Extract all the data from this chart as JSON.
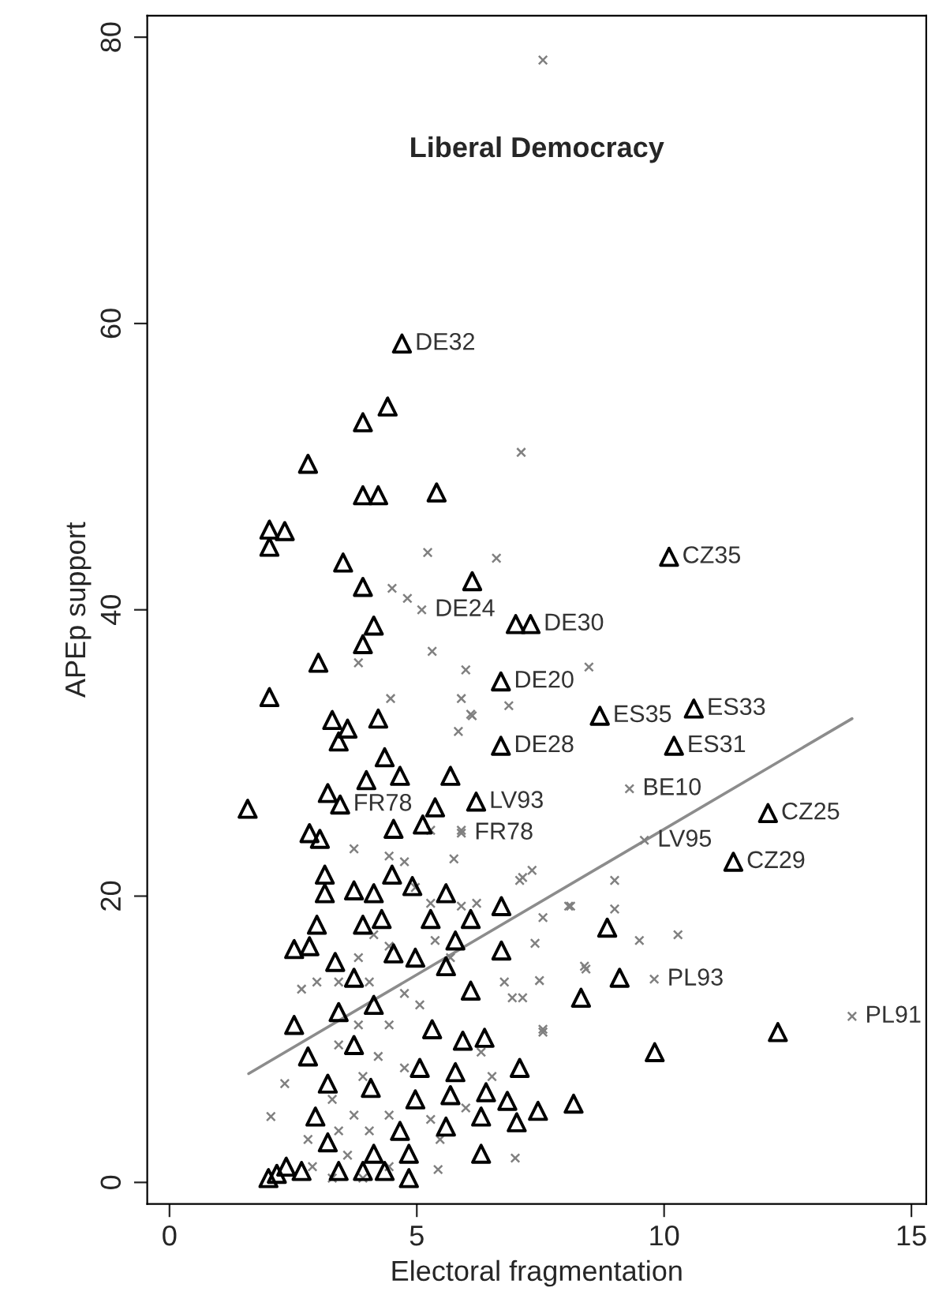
{
  "chart_data": {
    "type": "scatter",
    "title": "Liberal Democracy",
    "xlabel": "Electoral fragmentation",
    "ylabel": "APEp support",
    "xlim": [
      -0.45,
      15.3
    ],
    "ylim": [
      -1.5,
      81.5
    ],
    "xticks": [
      0,
      5,
      10,
      15
    ],
    "yticks": [
      0,
      20,
      40,
      60,
      80
    ],
    "grid": false,
    "legend": false,
    "series": [
      {
        "marker": "triangle",
        "color": "#000000",
        "x": [
          4.7,
          10.1,
          7.3,
          7.0,
          6.7,
          8.7,
          10.6,
          6.7,
          10.2,
          6.2,
          3.45,
          12.1,
          11.4,
          4.41,
          3.91,
          2.8,
          3.91,
          4.22,
          5.4,
          2.02,
          2.33,
          2.02,
          3.51,
          6.12,
          3.91,
          4.13,
          3.91,
          3.01,
          2.02,
          3.29,
          3.6,
          4.22,
          3.42,
          1.58,
          4.35,
          4.66,
          5.68,
          3.98,
          3.2,
          5.37,
          2.83,
          4.53,
          5.12,
          3.04,
          3.14,
          3.14,
          4.5,
          3.73,
          4.13,
          4.91,
          5.59,
          6.71,
          2.98,
          3.91,
          4.29,
          5.28,
          6.09,
          5.78,
          2.52,
          2.83,
          4.53,
          4.97,
          6.71,
          3.35,
          5.59,
          3.73,
          6.09,
          8.32,
          2.52,
          3.42,
          4.13,
          5.31,
          5.93,
          6.37,
          2.8,
          3.73,
          5.06,
          5.78,
          7.08,
          3.2,
          4.07,
          4.97,
          5.68,
          6.4,
          6.83,
          7.45,
          8.17,
          6.3,
          5.59,
          7.02,
          2.95,
          4.66,
          3.2,
          4.13,
          4.84,
          6.3,
          4.84,
          2.36,
          2.17,
          2.67,
          3.42,
          3.91,
          4.35,
          2.0,
          8.85,
          9.1,
          12.3,
          9.81
        ],
        "values": [
          58.6,
          43.7,
          39.0,
          39.0,
          35.0,
          32.6,
          33.1,
          30.5,
          30.5,
          26.6,
          26.4,
          25.8,
          22.4,
          54.2,
          53.1,
          50.2,
          48.0,
          48.0,
          48.2,
          45.6,
          45.5,
          44.4,
          43.3,
          42.0,
          41.6,
          38.9,
          37.6,
          36.3,
          33.9,
          32.3,
          31.7,
          32.4,
          30.8,
          26.1,
          29.7,
          28.4,
          28.4,
          28.1,
          27.2,
          26.2,
          24.4,
          24.7,
          25.0,
          24.0,
          21.5,
          20.2,
          21.5,
          20.4,
          20.2,
          20.7,
          20.2,
          19.3,
          18.0,
          18.0,
          18.4,
          18.4,
          18.4,
          16.9,
          16.3,
          16.5,
          16.0,
          15.7,
          16.2,
          15.4,
          15.1,
          14.3,
          13.4,
          12.9,
          11.0,
          11.9,
          12.4,
          10.7,
          9.9,
          10.1,
          8.8,
          9.6,
          8.0,
          7.7,
          8.0,
          6.9,
          6.6,
          5.8,
          6.1,
          6.3,
          5.7,
          5.0,
          5.5,
          4.6,
          3.9,
          4.2,
          4.6,
          3.6,
          2.8,
          2.0,
          2.0,
          2.0,
          0.3,
          1.1,
          0.6,
          0.8,
          0.8,
          0.8,
          0.8,
          0.3,
          17.8,
          14.3,
          10.5,
          9.1
        ]
      },
      {
        "marker": "cross",
        "color": "#808080",
        "x": [
          5.1,
          9.3,
          5.9,
          9.6,
          9.8,
          13.8,
          7.55,
          7.11,
          6.61,
          5.22,
          5.31,
          4.5,
          4.81,
          5.99,
          4.47,
          5.9,
          6.12,
          5.84,
          3.82,
          8.48,
          6.86,
          6.09,
          9.0,
          9.0,
          9.5,
          10.28,
          8.42,
          7.48,
          8.07,
          7.39,
          7.08,
          7.55,
          6.93,
          3.73,
          5.28,
          5.75,
          5.9,
          7.14,
          7.33,
          7.55,
          8.11,
          6.77,
          7.14,
          7.55,
          8.39,
          6.99,
          5.43,
          2.33,
          2.05,
          2.98,
          2.67,
          4.44,
          4.75,
          4.97,
          5.28,
          5.9,
          6.21,
          5.37,
          5.68,
          4.44,
          4.13,
          3.82,
          3.42,
          4.04,
          4.75,
          5.06,
          4.44,
          3.82,
          3.42,
          4.22,
          4.75,
          3.91,
          3.29,
          3.73,
          4.44,
          5.28,
          4.04,
          3.42,
          2.8,
          3.6,
          2.89,
          4.44,
          3.29,
          3.91,
          5.47,
          5.99,
          6.52,
          6.3
        ],
        "values": [
          40.0,
          27.5,
          24.4,
          23.9,
          14.2,
          11.6,
          78.4,
          51.0,
          43.6,
          44.0,
          37.1,
          41.5,
          40.8,
          35.8,
          33.8,
          33.8,
          32.6,
          31.5,
          36.3,
          36.0,
          33.3,
          32.7,
          21.1,
          19.1,
          16.9,
          17.3,
          14.9,
          14.1,
          19.3,
          16.7,
          21.1,
          10.5,
          12.9,
          23.3,
          24.6,
          22.6,
          24.6,
          21.3,
          21.8,
          18.5,
          19.3,
          14.0,
          12.9,
          10.7,
          15.1,
          1.7,
          0.9,
          6.9,
          4.6,
          14.0,
          13.5,
          22.8,
          22.4,
          20.6,
          19.5,
          19.3,
          19.5,
          16.9,
          15.7,
          16.5,
          17.3,
          15.7,
          14.0,
          14.0,
          13.2,
          12.4,
          11.0,
          11.0,
          9.6,
          8.8,
          8.0,
          7.4,
          5.8,
          4.7,
          4.7,
          4.4,
          3.6,
          3.6,
          3.0,
          1.9,
          1.1,
          1.1,
          0.3,
          0.3,
          3.0,
          5.2,
          7.4,
          9.1
        ]
      },
      {
        "type": "line",
        "marker": "none",
        "line_style": "solid",
        "color": "#8c8c8c",
        "x": [
          1.6,
          13.8
        ],
        "values": [
          7.6,
          32.4
        ]
      }
    ],
    "annotations": [
      {
        "text": "DE32",
        "x": 4.7,
        "y": 58.6
      },
      {
        "text": "CZ35",
        "x": 10.1,
        "y": 43.7
      },
      {
        "text": "DE24",
        "x": 5.1,
        "y": 40.0
      },
      {
        "text": "DE30",
        "x": 7.3,
        "y": 39.0
      },
      {
        "text": "DE20",
        "x": 6.7,
        "y": 35.0
      },
      {
        "text": "ES35",
        "x": 8.7,
        "y": 32.6
      },
      {
        "text": "ES33",
        "x": 10.6,
        "y": 33.1
      },
      {
        "text": "DE28",
        "x": 6.7,
        "y": 30.5
      },
      {
        "text": "ES31",
        "x": 10.2,
        "y": 30.5
      },
      {
        "text": "BE10",
        "x": 9.3,
        "y": 27.5
      },
      {
        "text": "LV93",
        "x": 6.2,
        "y": 26.6
      },
      {
        "text": "FR78",
        "x": 3.45,
        "y": 26.4
      },
      {
        "text": "FR78",
        "x": 5.9,
        "y": 24.4
      },
      {
        "text": "LV95",
        "x": 9.6,
        "y": 23.9
      },
      {
        "text": "CZ25",
        "x": 12.1,
        "y": 25.8
      },
      {
        "text": "CZ29",
        "x": 11.4,
        "y": 22.4
      },
      {
        "text": "PL93",
        "x": 9.8,
        "y": 14.2
      },
      {
        "text": "PL91",
        "x": 13.8,
        "y": 11.6
      }
    ]
  }
}
